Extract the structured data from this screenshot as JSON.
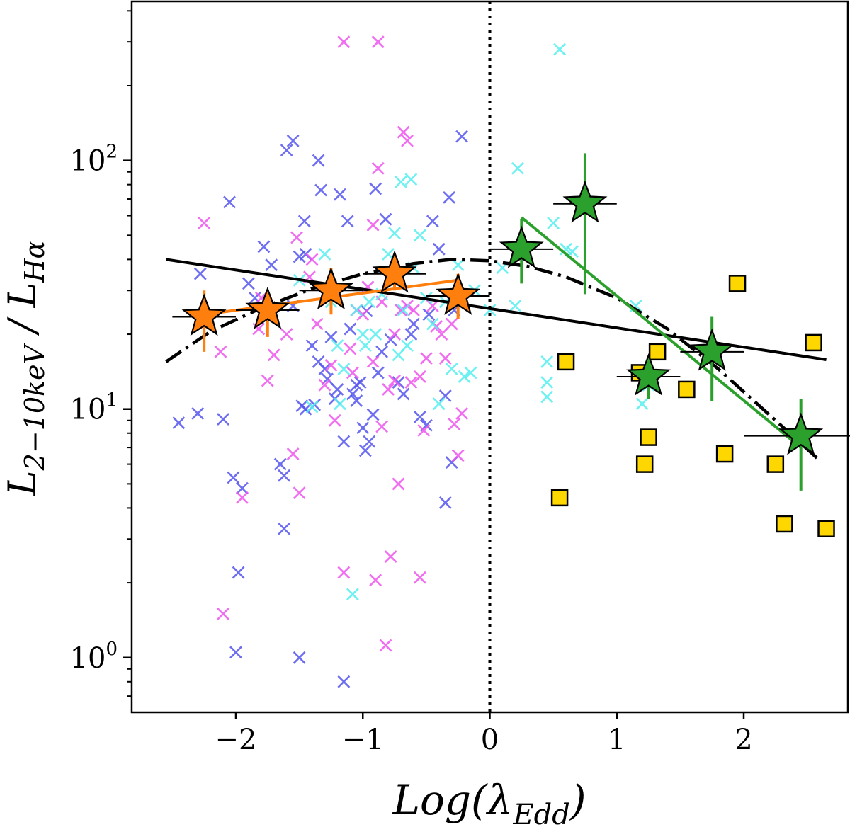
{
  "chart_data": {
    "type": "scatter",
    "title": "",
    "xlabel": "Log(λ_Edd)",
    "ylabel": "L_{2−10keV} / L_{Hα}",
    "xlim": [
      -2.82,
      2.82
    ],
    "ylim_log10": [
      -0.22,
      2.64
    ],
    "yscale": "log",
    "grid": false,
    "legend": "none",
    "x_ticks": [
      {
        "value": -2,
        "label": "−2"
      },
      {
        "value": -1,
        "label": "−1"
      },
      {
        "value": 0,
        "label": "0"
      },
      {
        "value": 1,
        "label": "1"
      },
      {
        "value": 2,
        "label": "2"
      }
    ],
    "y_ticks": [
      {
        "value": 1,
        "base": "10",
        "exp": "0"
      },
      {
        "value": 10,
        "base": "10",
        "exp": "1"
      },
      {
        "value": 100,
        "base": "10",
        "exp": "2"
      }
    ],
    "reference_line_x": 0,
    "cross_series": [
      {
        "color": "#5555ee",
        "points": [
          [
            -2.45,
            8.8
          ],
          [
            -2.3,
            9.6
          ],
          [
            -2.28,
            35
          ],
          [
            -2.1,
            9.1
          ],
          [
            -2.05,
            68
          ],
          [
            -2.02,
            5.3
          ],
          [
            -1.95,
            4.8
          ],
          [
            -1.98,
            2.2
          ],
          [
            -2,
            1.05
          ],
          [
            -1.9,
            32
          ],
          [
            -1.85,
            28
          ],
          [
            -1.72,
            38
          ],
          [
            -1.65,
            6
          ],
          [
            -1.62,
            5.4
          ],
          [
            -1.62,
            3.3
          ],
          [
            -1.6,
            110
          ],
          [
            -1.55,
            120
          ],
          [
            -1.5,
            41
          ],
          [
            -1.48,
            10.3
          ],
          [
            -1.46,
            57
          ],
          [
            -1.45,
            10
          ],
          [
            -1.4,
            18
          ],
          [
            -1.38,
            10.4
          ],
          [
            -1.35,
            100
          ],
          [
            -1.33,
            76
          ],
          [
            -1.3,
            14.5
          ],
          [
            -1.28,
            13.2
          ],
          [
            -1.25,
            19.5
          ],
          [
            -1.22,
            11
          ],
          [
            -1.2,
            12
          ],
          [
            -1.18,
            73
          ],
          [
            -1.15,
            0.8
          ],
          [
            -1.12,
            57
          ],
          [
            -1.1,
            21
          ],
          [
            -1.08,
            11.5
          ],
          [
            -1.05,
            10.8
          ],
          [
            -1.02,
            12.8
          ],
          [
            -1,
            8.4
          ],
          [
            -0.98,
            6.8
          ],
          [
            -0.95,
            7.4
          ],
          [
            -0.92,
            9.5
          ],
          [
            -0.9,
            77
          ],
          [
            -0.88,
            14
          ],
          [
            -0.85,
            17
          ],
          [
            -0.82,
            58
          ],
          [
            -0.78,
            19
          ],
          [
            -0.72,
            12.8
          ],
          [
            -0.68,
            11.5
          ],
          [
            -0.62,
            20
          ],
          [
            -0.55,
            9.3
          ],
          [
            -0.5,
            8.6
          ],
          [
            -0.48,
            24
          ],
          [
            -0.45,
            57
          ],
          [
            -0.4,
            44
          ],
          [
            -0.35,
            4.2
          ],
          [
            -0.3,
            6.1
          ],
          [
            -0.32,
            71
          ],
          [
            -0.35,
            11.3
          ],
          [
            -0.28,
            25
          ],
          [
            -0.22,
            125
          ],
          [
            -1.45,
            42
          ],
          [
            -1.55,
            26
          ],
          [
            -1.78,
            45
          ],
          [
            -1.35,
            15.5
          ],
          [
            -0.97,
            24.8
          ],
          [
            -0.6,
            22
          ],
          [
            -1.5,
            1.0
          ],
          [
            -1.15,
            7.4
          ],
          [
            -1.05,
            12.5
          ]
        ]
      },
      {
        "color": "#ee55ee",
        "points": [
          [
            -2.25,
            56
          ],
          [
            -2.12,
            17
          ],
          [
            -2.1,
            1.5
          ],
          [
            -1.95,
            4.4
          ],
          [
            -1.82,
            21
          ],
          [
            -1.8,
            28
          ],
          [
            -1.75,
            13
          ],
          [
            -1.7,
            16.5
          ],
          [
            -1.6,
            20
          ],
          [
            -1.55,
            6.6
          ],
          [
            -1.52,
            49
          ],
          [
            -1.5,
            4.6
          ],
          [
            -1.42,
            34
          ],
          [
            -1.4,
            40
          ],
          [
            -1.36,
            22
          ],
          [
            -1.3,
            12.5
          ],
          [
            -1.25,
            15
          ],
          [
            -1.22,
            9
          ],
          [
            -1.15,
            300
          ],
          [
            -1.15,
            2.2
          ],
          [
            -1.1,
            17.5
          ],
          [
            -1.05,
            25
          ],
          [
            -1,
            24
          ],
          [
            -0.96,
            31
          ],
          [
            -0.92,
            55
          ],
          [
            -0.9,
            2.05
          ],
          [
            -0.88,
            300
          ],
          [
            -0.85,
            8.5
          ],
          [
            -0.82,
            1.12
          ],
          [
            -0.8,
            12
          ],
          [
            -0.78,
            2.55
          ],
          [
            -0.75,
            20
          ],
          [
            -0.72,
            5
          ],
          [
            -0.7,
            25
          ],
          [
            -0.68,
            130
          ],
          [
            -0.65,
            120
          ],
          [
            -0.6,
            25
          ],
          [
            -0.55,
            2.1
          ],
          [
            -0.52,
            8.2
          ],
          [
            -0.5,
            16
          ],
          [
            -0.45,
            26
          ],
          [
            -0.42,
            21.5
          ],
          [
            -0.38,
            20
          ],
          [
            -0.35,
            16
          ],
          [
            -0.3,
            22
          ],
          [
            -0.28,
            8.7
          ],
          [
            -0.25,
            6.5
          ],
          [
            -0.22,
            9.6
          ],
          [
            -1.08,
            14
          ],
          [
            -0.62,
            12.8
          ],
          [
            -0.75,
            13
          ],
          [
            -0.65,
            26
          ],
          [
            -0.92,
            15.5
          ],
          [
            -0.55,
            13.5
          ],
          [
            -0.88,
            93
          ],
          [
            -0.85,
            27
          ]
        ]
      },
      {
        "color": "#55eeee",
        "points": [
          [
            -1.5,
            33
          ],
          [
            -1.4,
            10.2
          ],
          [
            -1.3,
            42
          ],
          [
            -1.25,
            27
          ],
          [
            -1.2,
            18
          ],
          [
            -1.18,
            10.5
          ],
          [
            -1.08,
            1.8
          ],
          [
            -1.05,
            25
          ],
          [
            -1,
            20
          ],
          [
            -0.95,
            27
          ],
          [
            -0.9,
            20
          ],
          [
            -0.85,
            29
          ],
          [
            -0.8,
            42
          ],
          [
            -0.75,
            51
          ],
          [
            -0.7,
            82
          ],
          [
            -0.68,
            25
          ],
          [
            -0.62,
            84
          ],
          [
            -0.6,
            37
          ],
          [
            -0.55,
            50
          ],
          [
            -0.5,
            28
          ],
          [
            -0.45,
            22
          ],
          [
            -0.4,
            10.5
          ],
          [
            -0.35,
            27
          ],
          [
            -0.3,
            14.5
          ],
          [
            -0.25,
            38
          ],
          [
            -0.2,
            13.5
          ],
          [
            -0.15,
            14
          ],
          [
            -0.12,
            30
          ],
          [
            0,
            25
          ],
          [
            0.1,
            37
          ],
          [
            0.2,
            26
          ],
          [
            0.22,
            93
          ],
          [
            0.45,
            15.5
          ],
          [
            0.45,
            12.8
          ],
          [
            0.45,
            11.2
          ],
          [
            0.5,
            56
          ],
          [
            0.55,
            280
          ],
          [
            0.6,
            44
          ],
          [
            0.65,
            43
          ],
          [
            1.15,
            26
          ],
          [
            1.2,
            10.5
          ],
          [
            1.25,
            12.5
          ],
          [
            -0.65,
            18
          ],
          [
            -0.72,
            16.5
          ],
          [
            -0.98,
            18
          ],
          [
            -1.15,
            14.5
          ]
        ]
      }
    ],
    "square_series": {
      "color": "#ffd700",
      "points": [
        [
          0.55,
          4.4
        ],
        [
          0.6,
          15.5
        ],
        [
          1.22,
          6
        ],
        [
          1.25,
          7.7
        ],
        [
          1.32,
          17
        ],
        [
          1.55,
          12
        ],
        [
          1.85,
          6.6
        ],
        [
          1.95,
          32
        ],
        [
          2.25,
          6
        ],
        [
          2.32,
          3.45
        ],
        [
          2.55,
          18.5
        ],
        [
          2.65,
          3.3
        ],
        [
          1.18,
          14
        ]
      ]
    },
    "orange_bins": {
      "color": "#ff7f0e",
      "points": [
        {
          "x": -2.25,
          "y": 23.5,
          "xerr": 0.25,
          "ylo": 17,
          "yhi": 30
        },
        {
          "x": -1.75,
          "y": 25,
          "xerr": 0.25,
          "ylo": 19.5,
          "yhi": 30
        },
        {
          "x": -1.25,
          "y": 30,
          "xerr": 0.25,
          "ylo": 24,
          "yhi": 37
        },
        {
          "x": -0.75,
          "y": 35,
          "xerr": 0.25,
          "ylo": 30,
          "yhi": 40
        },
        {
          "x": -0.25,
          "y": 28.5,
          "xerr": 0.25,
          "ylo": 23,
          "yhi": 35
        }
      ],
      "fit": [
        [
          -2.25,
          24
        ],
        [
          -0.25,
          33
        ]
      ]
    },
    "green_bins": {
      "color": "#2ca02c",
      "points": [
        {
          "x": 0.25,
          "y": 44,
          "xerr": 0.25,
          "ylo": 32,
          "yhi": 58
        },
        {
          "x": 0.75,
          "y": 67,
          "xerr": 0.25,
          "ylo": 29,
          "yhi": 107
        },
        {
          "x": 1.25,
          "y": 13.5,
          "xerr": 0.25,
          "ylo": 11,
          "yhi": 16
        },
        {
          "x": 1.75,
          "y": 17,
          "xerr": 0.25,
          "ylo": 10.8,
          "yhi": 23.5
        },
        {
          "x": 2.45,
          "y": 7.8,
          "xerr": 0.45,
          "ylo": 4.7,
          "yhi": 11
        }
      ],
      "fit": [
        [
          0.25,
          59
        ],
        [
          2.45,
          7
        ]
      ]
    },
    "solid_fit": [
      [
        -2.55,
        40
      ],
      [
        2.65,
        15.8
      ]
    ],
    "dashdot_curve": [
      [
        -2.55,
        15.5
      ],
      [
        -2.2,
        20.5
      ],
      [
        -1.8,
        25.5
      ],
      [
        -1.4,
        30.5
      ],
      [
        -1,
        35
      ],
      [
        -0.6,
        38.5
      ],
      [
        -0.3,
        40
      ],
      [
        0,
        39.5
      ],
      [
        0.3,
        37.5
      ],
      [
        0.6,
        34
      ],
      [
        1,
        28
      ],
      [
        1.4,
        21
      ],
      [
        1.8,
        14.5
      ],
      [
        2.2,
        9.5
      ],
      [
        2.6,
        6.2
      ]
    ]
  }
}
